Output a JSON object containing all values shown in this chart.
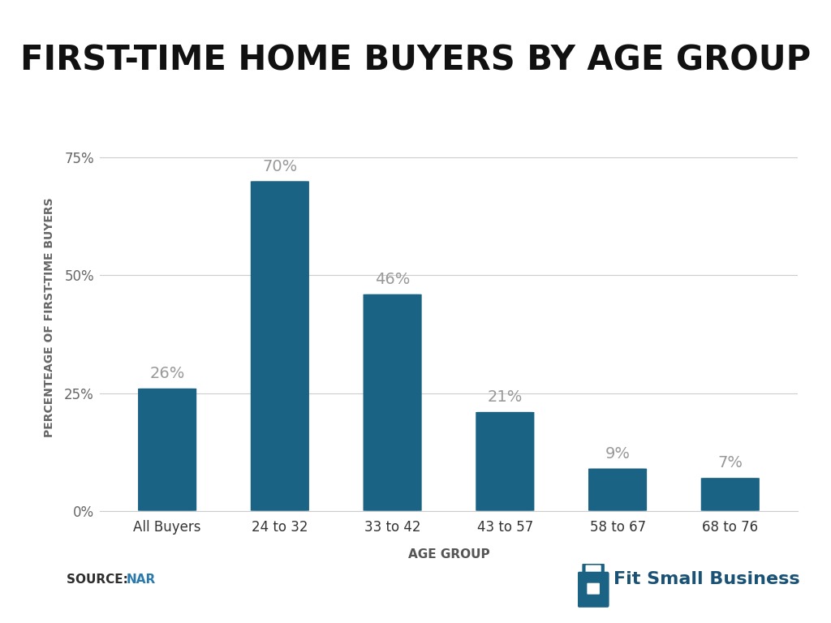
{
  "title": "FIRST-TIME HOME BUYERS BY AGE GROUP",
  "categories": [
    "All Buyers",
    "24 to 32",
    "33 to 42",
    "43 to 57",
    "58 to 67",
    "68 to 76"
  ],
  "values": [
    26,
    70,
    46,
    21,
    9,
    7
  ],
  "bar_color": "#1a6384",
  "ylabel": "PERCENTEAGE OF FIRST-TIME BUYERS",
  "xlabel": "AGE GROUP",
  "yticks": [
    0,
    25,
    50,
    75
  ],
  "ytick_labels": [
    "0%",
    "25%",
    "50%",
    "75%"
  ],
  "ylim": [
    0,
    82
  ],
  "background_color": "#ffffff",
  "source_label": "SOURCE: ",
  "source_highlight": "NAR",
  "source_color": "#2d2d2d",
  "source_highlight_color": "#2a7aad",
  "grid_color": "#cccccc",
  "bar_label_color": "#999999",
  "title_fontsize": 30,
  "axis_label_fontsize": 11,
  "tick_fontsize": 12,
  "bar_label_fontsize": 14,
  "ylabel_fontsize": 10,
  "fsb_text": "Fit Small Business",
  "fsb_color": "#1a5276"
}
